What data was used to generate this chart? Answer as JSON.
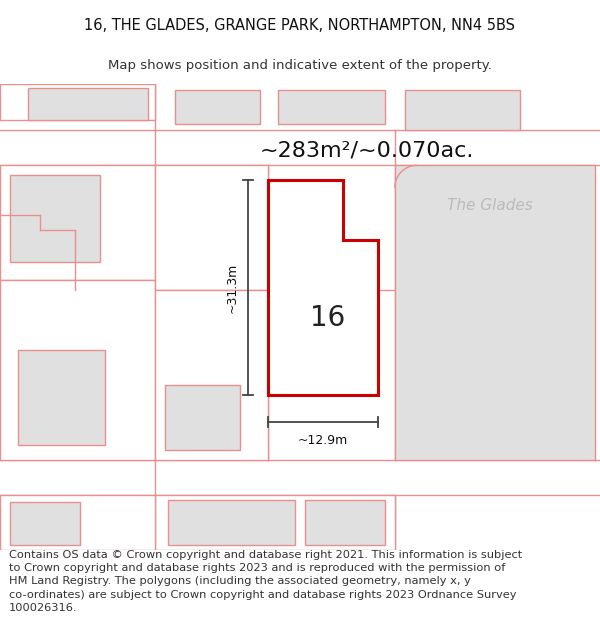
{
  "title_line1": "16, THE GLADES, GRANGE PARK, NORTHAMPTON, NN4 5BS",
  "title_line2": "Map shows position and indicative extent of the property.",
  "area_text": "~283m²/~0.070ac.",
  "street_label": "The Glades",
  "house_number": "16",
  "dim_width": "~12.9m",
  "dim_height": "~31.3m",
  "footer": "Contains OS data © Crown copyright and database right 2021. This information is subject\nto Crown copyright and database rights 2023 and is reproduced with the permission of\nHM Land Registry. The polygons (including the associated geometry, namely x, y\nco-ordinates) are subject to Crown copyright and database rights 2023 Ordnance Survey\n100026316.",
  "bg_color": "#ffffff",
  "map_bg": "#ffffff",
  "plot_outline_color": "#cc0000",
  "parcel_line_color": "#e89090",
  "building_fill": "#e0e0e0",
  "plot_fill": "#ffffff",
  "title_fontsize": 10.5,
  "subtitle_fontsize": 9.5,
  "footer_fontsize": 8.2,
  "area_fontsize": 16,
  "street_fontsize": 11,
  "housenumber_fontsize": 20,
  "dim_fontsize": 9
}
